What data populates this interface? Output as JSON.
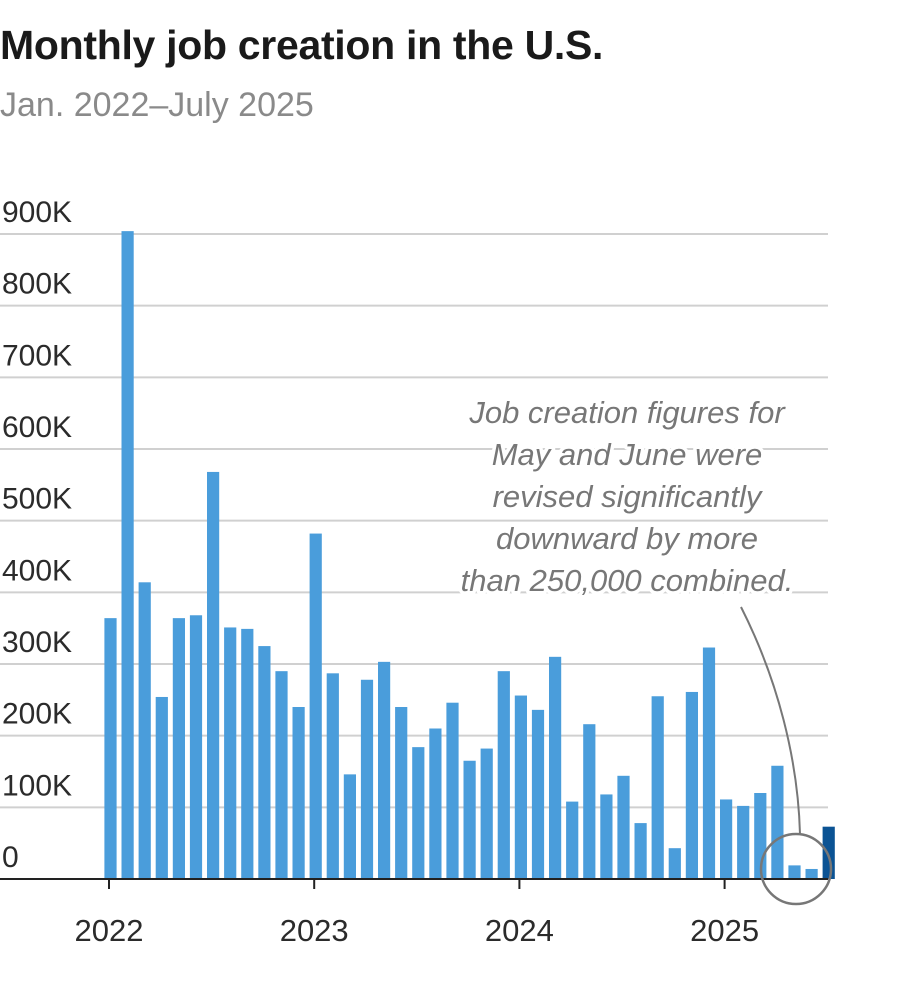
{
  "title": "Monthly job creation in the U.S.",
  "subtitle": "Jan. 2022–July 2025",
  "colors": {
    "bar": "#4a9ddb",
    "highlight": "#0b5394",
    "grid": "#d0d0d0",
    "axis": "#222222",
    "annotation": "#777777"
  },
  "chart_data": {
    "type": "bar",
    "title": "Monthly job creation in the U.S.",
    "subtitle": "Jan. 2022–July 2025",
    "xlabel": "",
    "ylabel": "",
    "ylim": [
      0,
      900000
    ],
    "grid": true,
    "y_ticks": [
      {
        "value": 0,
        "label": "0"
      },
      {
        "value": 100000,
        "label": "100K"
      },
      {
        "value": 200000,
        "label": "200K"
      },
      {
        "value": 300000,
        "label": "300K"
      },
      {
        "value": 400000,
        "label": "400K"
      },
      {
        "value": 500000,
        "label": "500K"
      },
      {
        "value": 600000,
        "label": "600K"
      },
      {
        "value": 700000,
        "label": "700K"
      },
      {
        "value": 800000,
        "label": "800K"
      },
      {
        "value": 900000,
        "label": "900K"
      }
    ],
    "x_ticks": [
      {
        "index": 0,
        "label": "2022"
      },
      {
        "index": 12,
        "label": "2023"
      },
      {
        "index": 24,
        "label": "2024"
      },
      {
        "index": 36,
        "label": "2025"
      }
    ],
    "categories": [
      "2022-01",
      "2022-02",
      "2022-03",
      "2022-04",
      "2022-05",
      "2022-06",
      "2022-07",
      "2022-08",
      "2022-09",
      "2022-10",
      "2022-11",
      "2022-12",
      "2023-01",
      "2023-02",
      "2023-03",
      "2023-04",
      "2023-05",
      "2023-06",
      "2023-07",
      "2023-08",
      "2023-09",
      "2023-10",
      "2023-11",
      "2023-12",
      "2024-01",
      "2024-02",
      "2024-03",
      "2024-04",
      "2024-05",
      "2024-06",
      "2024-07",
      "2024-08",
      "2024-09",
      "2024-10",
      "2024-11",
      "2024-12",
      "2025-01",
      "2025-02",
      "2025-03",
      "2025-04",
      "2025-05",
      "2025-06",
      "2025-07"
    ],
    "values": [
      364000,
      904000,
      414000,
      254000,
      364000,
      368000,
      568000,
      351000,
      349000,
      325000,
      290000,
      240000,
      482000,
      287000,
      146000,
      278000,
      303000,
      240000,
      184000,
      210000,
      246000,
      165000,
      182000,
      290000,
      256000,
      236000,
      310000,
      108000,
      216000,
      118000,
      144000,
      78000,
      255000,
      43000,
      261000,
      323000,
      111000,
      102000,
      120000,
      158000,
      19000,
      14000,
      73000
    ],
    "highlight_index": 42,
    "annotation": {
      "lines": [
        "Job creation figures for",
        "May and June were",
        "revised significantly",
        "downward by more",
        "than 250,000 combined."
      ]
    }
  }
}
